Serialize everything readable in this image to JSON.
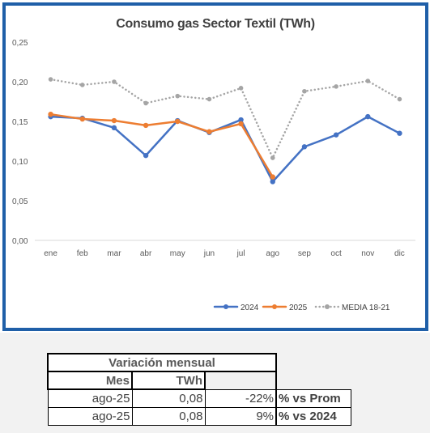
{
  "chart_data": {
    "type": "line",
    "title": "Consumo gas Sector Textil (TWh)",
    "categories": [
      "ene",
      "feb",
      "mar",
      "abr",
      "may",
      "jun",
      "jul",
      "ago",
      "sep",
      "oct",
      "nov",
      "dic"
    ],
    "y_ticks": [
      "0,00",
      "0,05",
      "0,10",
      "0,15",
      "0,20",
      "0,25"
    ],
    "ylim": [
      0,
      0.25
    ],
    "grid": false,
    "legend_position": "bottom-right",
    "series": [
      {
        "name": "2024",
        "color": "#4472c4",
        "style": "solid",
        "marker": "circle",
        "values": [
          0.156,
          0.154,
          0.142,
          0.107,
          0.151,
          0.136,
          0.152,
          0.074,
          0.118,
          0.133,
          0.156,
          0.135
        ]
      },
      {
        "name": "2025",
        "color": "#ed7d31",
        "style": "solid",
        "marker": "circle",
        "values": [
          0.159,
          0.153,
          0.151,
          0.145,
          0.15,
          0.137,
          0.147,
          0.08,
          null,
          null,
          null,
          null
        ]
      },
      {
        "name": "MEDIA 18-21",
        "color": "#a5a5a5",
        "style": "dotted",
        "marker": "circle",
        "values": [
          0.203,
          0.196,
          0.2,
          0.173,
          0.182,
          0.178,
          0.192,
          0.104,
          0.188,
          0.194,
          0.201,
          0.178
        ]
      }
    ]
  },
  "table": {
    "title": "Variación mensual",
    "headers": {
      "mes": "Mes",
      "twh": "TWh"
    },
    "rows": [
      {
        "mes": "ago-25",
        "twh": "0,08",
        "pct": "-22%",
        "label": "% vs Prom"
      },
      {
        "mes": "ago-25",
        "twh": "0,08",
        "pct": "9%",
        "label": "% vs 2024"
      }
    ]
  }
}
